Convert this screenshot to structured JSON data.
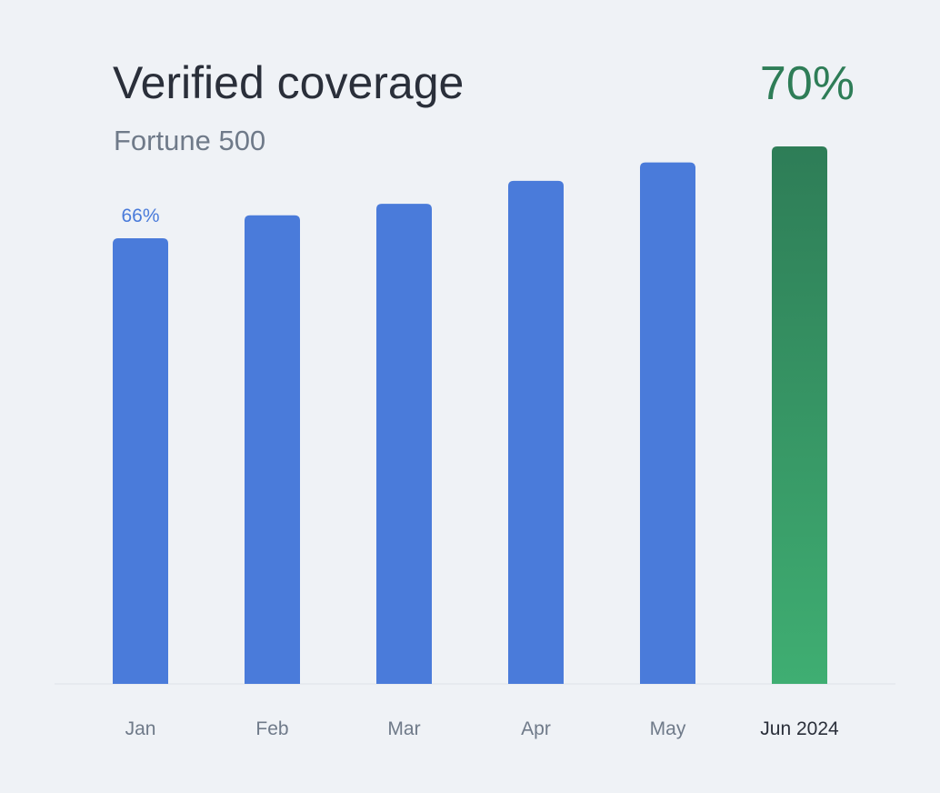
{
  "title": "Verified coverage",
  "subtitle": "Fortune 500",
  "headline_value": "70%",
  "colors": {
    "bar": "#4a7bda",
    "highlight_top": "#2e7d57",
    "highlight_bottom": "#3fae72",
    "label": "#6f7a89",
    "highlight_label": "#2a2f3a",
    "baseline": "#dde1e8"
  },
  "chart_data": {
    "type": "bar",
    "categories": [
      "Jan",
      "Feb",
      "Mar",
      "Apr",
      "May",
      "Jun 2024"
    ],
    "values": [
      66,
      67,
      67.5,
      68.5,
      69.3,
      70
    ],
    "unit": "%",
    "data_labels": [
      {
        "index": 0,
        "text": "66%"
      }
    ],
    "highlight_index": 5,
    "ylim": [
      46.6,
      70
    ],
    "grid": false,
    "legend": "none"
  }
}
